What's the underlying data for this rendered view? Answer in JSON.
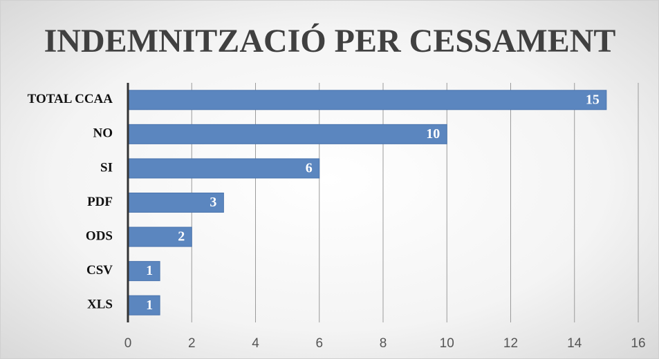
{
  "chart_data": {
    "type": "bar",
    "orientation": "horizontal",
    "title": "INDEMNITZACIÓ PER CESSAMENT",
    "categories": [
      "TOTAL CCAA",
      "NO",
      "SI",
      "PDF",
      "ODS",
      "CSV",
      "XLS"
    ],
    "values": [
      15,
      10,
      6,
      3,
      2,
      1,
      1
    ],
    "color": "#5b86bf",
    "xlim": [
      0,
      16
    ],
    "xticks": [
      0,
      2,
      4,
      6,
      8,
      10,
      12,
      14,
      16
    ],
    "grid": true
  }
}
